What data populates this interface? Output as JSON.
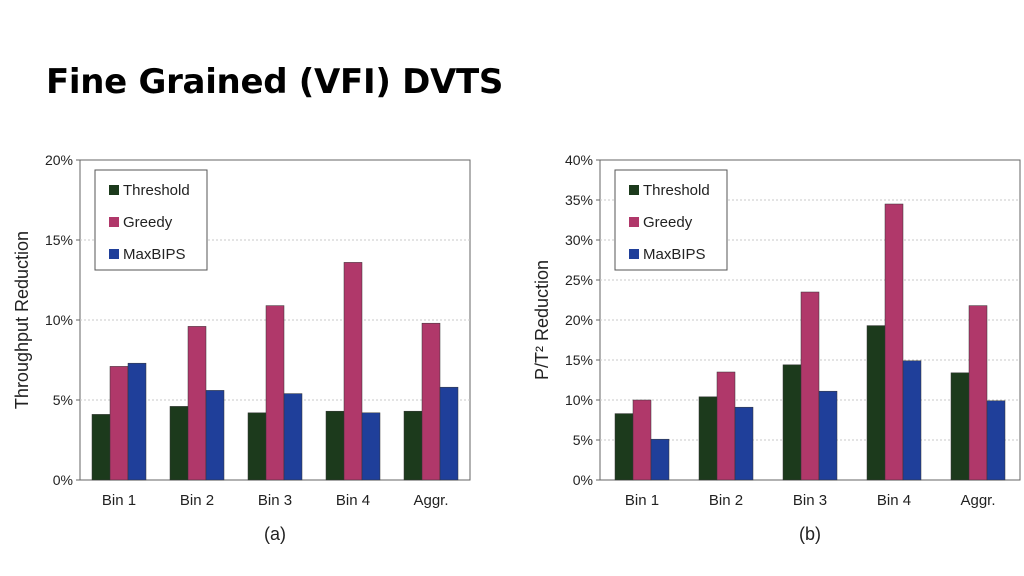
{
  "slide": {
    "title": "Fine Grained (VFI) DVTS"
  },
  "chart_data": [
    {
      "type": "bar",
      "caption": "(a)",
      "ylabel": "Throughput Reduction",
      "xlabel": "",
      "categories": [
        "Bin 1",
        "Bin 2",
        "Bin 3",
        "Bin 4",
        "Aggr."
      ],
      "ylim": [
        0,
        20
      ],
      "yticks": [
        0,
        5,
        10,
        15,
        20
      ],
      "ytick_labels": [
        "0%",
        "5%",
        "10%",
        "15%",
        "20%"
      ],
      "grid": true,
      "legend": "top-left",
      "series": [
        {
          "name": "Threshold",
          "color": "#1c3a1c",
          "values": [
            4.1,
            4.6,
            4.2,
            4.3,
            4.3
          ]
        },
        {
          "name": "Greedy",
          "color": "#b0386a",
          "values": [
            7.1,
            9.6,
            10.9,
            13.6,
            9.8
          ]
        },
        {
          "name": "MaxBIPS",
          "color": "#1f3f9a",
          "values": [
            7.3,
            5.6,
            5.4,
            4.2,
            5.8
          ]
        }
      ]
    },
    {
      "type": "bar",
      "caption": "(b)",
      "ylabel": "P/T² Reduction",
      "xlabel": "",
      "categories": [
        "Bin 1",
        "Bin 2",
        "Bin 3",
        "Bin 4",
        "Aggr."
      ],
      "ylim": [
        0,
        40
      ],
      "yticks": [
        0,
        5,
        10,
        15,
        20,
        25,
        30,
        35,
        40
      ],
      "ytick_labels": [
        "0%",
        "5%",
        "10%",
        "15%",
        "20%",
        "25%",
        "30%",
        "35%",
        "40%"
      ],
      "grid": true,
      "legend": "top-left",
      "series": [
        {
          "name": "Threshold",
          "color": "#1c3a1c",
          "values": [
            8.3,
            10.4,
            14.4,
            19.3,
            13.4
          ]
        },
        {
          "name": "Greedy",
          "color": "#b0386a",
          "values": [
            10.0,
            13.5,
            23.5,
            34.5,
            21.8
          ]
        },
        {
          "name": "MaxBIPS",
          "color": "#1f3f9a",
          "values": [
            5.1,
            9.1,
            11.1,
            14.9,
            9.9
          ]
        }
      ]
    }
  ]
}
